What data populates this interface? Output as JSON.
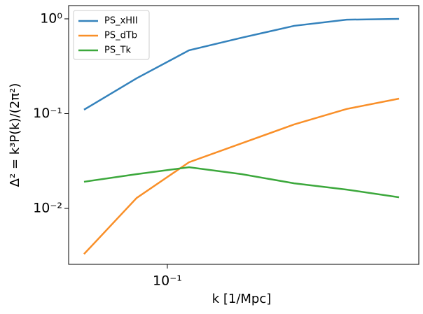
{
  "chart_data": {
    "type": "line",
    "xlabel": "k [1/Mpc]",
    "ylabel": "Δ² = k³P(k)/(2π²)",
    "x": [
      0.0613,
      0.0835,
      0.1136,
      0.1547,
      0.2106,
      0.2867,
      0.3903
    ],
    "series": [
      {
        "name": "PS_xHII",
        "color": "#3482bc",
        "values": [
          0.11,
          0.236,
          0.466,
          0.632,
          0.844,
          0.98,
          1.0
        ]
      },
      {
        "name": "PS_dTb",
        "color": "#f98f28",
        "values": [
          0.0033,
          0.0129,
          0.0307,
          0.0486,
          0.0769,
          0.112,
          0.144
        ]
      },
      {
        "name": "PS_Tk",
        "color": "#3ca83c",
        "values": [
          0.0191,
          0.023,
          0.0272,
          0.023,
          0.0184,
          0.0158,
          0.0131
        ]
      }
    ],
    "xscale": "log",
    "yscale": "log",
    "xlim": [
      0.056,
      0.438
    ],
    "ylim": [
      0.00257,
      1.38
    ],
    "xticks": [
      {
        "value": 0.1,
        "label": "10⁻¹"
      }
    ],
    "yticks": [
      {
        "value": 0.01,
        "label": "10⁻²"
      },
      {
        "value": 0.1,
        "label": "10⁻¹"
      },
      {
        "value": 1,
        "label": "10⁰"
      }
    ],
    "legend": "upper left"
  }
}
